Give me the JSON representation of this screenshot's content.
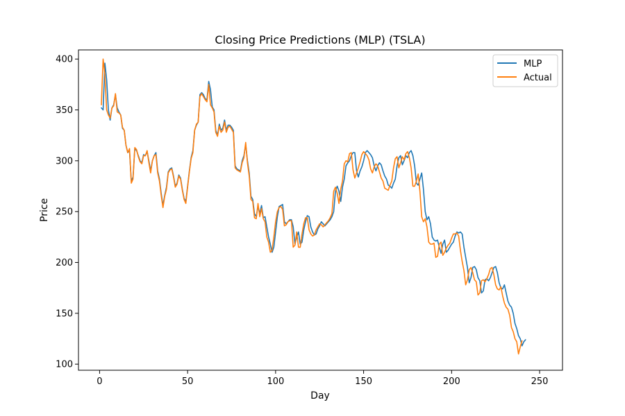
{
  "chart_data": {
    "type": "line",
    "title": "Closing Price Predictions (MLP) (TSLA)",
    "xlabel": "Day",
    "ylabel": "Price",
    "xlim": [
      -12,
      263
    ],
    "ylim": [
      94,
      409
    ],
    "xticks": [
      0,
      50,
      100,
      150,
      200,
      250
    ],
    "yticks": [
      100,
      150,
      200,
      250,
      300,
      350,
      400
    ],
    "grid": false,
    "legend_position": "upper-right",
    "x_start": 1,
    "x_step": 1,
    "series": [
      {
        "name": "MLP",
        "color": "#1f77b4",
        "values": [
          352,
          350,
          396,
          380,
          350,
          340,
          352,
          355,
          365,
          352,
          348,
          345,
          332,
          330,
          315,
          308,
          310,
          280,
          284,
          312,
          310,
          305,
          300,
          298,
          306,
          305,
          309,
          300,
          290,
          300,
          305,
          308,
          290,
          282,
          268,
          256,
          266,
          274,
          289,
          292,
          293,
          285,
          275,
          278,
          286,
          283,
          272,
          263,
          260,
          275,
          290,
          303,
          310,
          330,
          335,
          338,
          365,
          367,
          365,
          361,
          360,
          378,
          370,
          353,
          350,
          330,
          325,
          336,
          330,
          332,
          340,
          330,
          335,
          335,
          333,
          330,
          295,
          292,
          291,
          290,
          300,
          305,
          316,
          300,
          288,
          265,
          262,
          248,
          245,
          255,
          248,
          256,
          244,
          245,
          235,
          225,
          218,
          210,
          215,
          230,
          245,
          255,
          256,
          257,
          240,
          238,
          240,
          242,
          242,
          235,
          218,
          225,
          230,
          218,
          220,
          232,
          240,
          246,
          245,
          235,
          230,
          227,
          228,
          233,
          236,
          240,
          238,
          236,
          238,
          240,
          242,
          245,
          250,
          270,
          275,
          270,
          260,
          274,
          282,
          295,
          298,
          300,
          305,
          308,
          308,
          290,
          284,
          290,
          294,
          300,
          308,
          310,
          308,
          306,
          303,
          295,
          290,
          295,
          298,
          296,
          290,
          285,
          282,
          276,
          275,
          273,
          278,
          282,
          295,
          303,
          305,
          296,
          300,
          305,
          303,
          308,
          310,
          305,
          295,
          278,
          276,
          282,
          288,
          272,
          250,
          242,
          245,
          238,
          225,
          222,
          221,
          222,
          215,
          209,
          218,
          222,
          210,
          212,
          215,
          218,
          220,
          226,
          230,
          229,
          230,
          228,
          215,
          205,
          195,
          180,
          185,
          195,
          196,
          193,
          185,
          182,
          170,
          172,
          183,
          184,
          182,
          185,
          190,
          195,
          196,
          190,
          180,
          175,
          174,
          178,
          170,
          162,
          158,
          156,
          150,
          140,
          135,
          128,
          125,
          118,
          122,
          124
        ]
      },
      {
        "name": "Actual",
        "color": "#ff7f0e",
        "values": [
          355,
          400,
          385,
          350,
          345,
          342,
          352,
          354,
          366,
          348,
          347,
          345,
          333,
          330,
          315,
          308,
          312,
          278,
          282,
          313,
          311,
          304,
          299,
          297,
          305,
          305,
          310,
          298,
          288,
          300,
          305,
          306,
          288,
          280,
          266,
          254,
          265,
          272,
          288,
          291,
          292,
          284,
          274,
          277,
          285,
          282,
          271,
          262,
          258,
          274,
          289,
          302,
          308,
          330,
          336,
          338,
          363,
          366,
          363,
          360,
          358,
          375,
          355,
          352,
          348,
          328,
          324,
          334,
          328,
          330,
          338,
          328,
          333,
          334,
          331,
          328,
          293,
          291,
          290,
          289,
          298,
          303,
          318,
          298,
          285,
          262,
          260,
          244,
          243,
          258,
          245,
          253,
          243,
          240,
          225,
          220,
          210,
          212,
          225,
          240,
          250,
          254,
          255,
          252,
          236,
          237,
          240,
          241,
          241,
          215,
          217,
          230,
          215,
          215,
          228,
          238,
          244,
          244,
          232,
          228,
          226,
          227,
          232,
          235,
          238,
          237,
          235,
          237,
          239,
          241,
          244,
          248,
          270,
          274,
          268,
          258,
          272,
          280,
          297,
          300,
          299,
          307,
          308,
          291,
          283,
          288,
          293,
          299,
          306,
          309,
          307,
          305,
          301,
          292,
          288,
          294,
          297,
          295,
          289,
          283,
          280,
          273,
          272,
          271,
          276,
          280,
          293,
          302,
          304,
          293,
          298,
          304,
          301,
          307,
          309,
          303,
          293,
          275,
          275,
          280,
          287,
          270,
          245,
          240,
          243,
          235,
          220,
          218,
          218,
          219,
          205,
          206,
          218,
          220,
          207,
          210,
          214,
          217,
          219,
          224,
          228,
          228,
          229,
          226,
          212,
          201,
          192,
          178,
          183,
          193,
          195,
          190,
          183,
          181,
          168,
          170,
          182,
          183,
          181,
          184,
          188,
          194,
          195,
          188,
          178,
          174,
          173,
          176,
          167,
          160,
          156,
          154,
          148,
          136,
          132,
          125,
          122,
          110,
          117,
          123
        ]
      }
    ]
  }
}
